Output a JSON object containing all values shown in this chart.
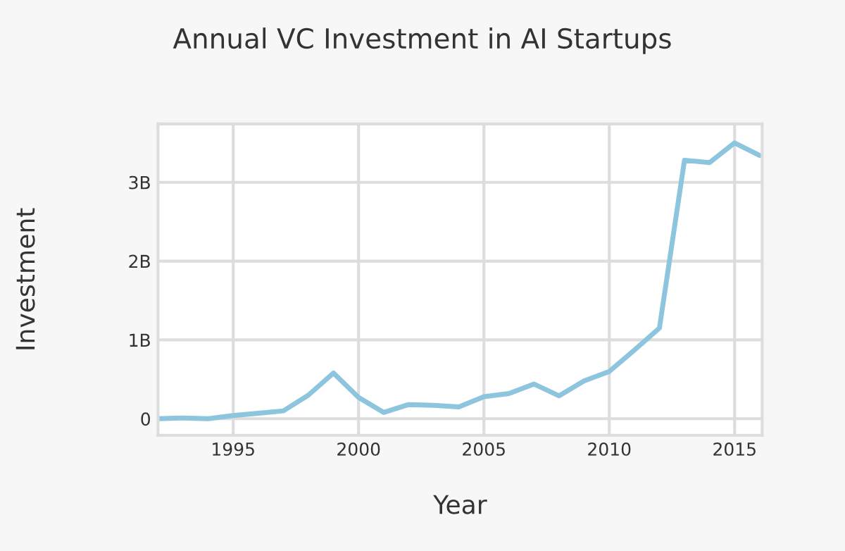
{
  "chart_data": {
    "type": "line",
    "title": "Annual VC Investment in AI Startups",
    "xlabel": "Year",
    "ylabel": "Investment",
    "x": [
      1992,
      1993,
      1994,
      1995,
      1996,
      1997,
      1998,
      1999,
      2000,
      2001,
      2002,
      2003,
      2004,
      2005,
      2006,
      2007,
      2008,
      2009,
      2010,
      2011,
      2012,
      2013,
      2014,
      2015,
      2016
    ],
    "series": [
      {
        "color": "#8ec5de",
        "values": [
          0,
          0.01,
          0,
          0.04,
          0.07,
          0.1,
          0.3,
          0.58,
          0.27,
          0.08,
          0.18,
          0.17,
          0.15,
          0.28,
          0.32,
          0.44,
          0.29,
          0.48,
          0.6,
          0.87,
          1.15,
          3.28,
          3.25,
          3.5,
          3.34
        ]
      }
    ],
    "xlim": [
      1992,
      2016.1
    ],
    "xticks": [
      1995,
      2000,
      2005,
      2010,
      2015
    ],
    "ylim": [
      -0.21,
      3.74
    ],
    "yticks": [
      0,
      {
        "value": 1,
        "label": "1B"
      },
      {
        "value": 2,
        "label": "2B"
      },
      {
        "value": 3,
        "label": "3B"
      }
    ],
    "grid": true
  }
}
